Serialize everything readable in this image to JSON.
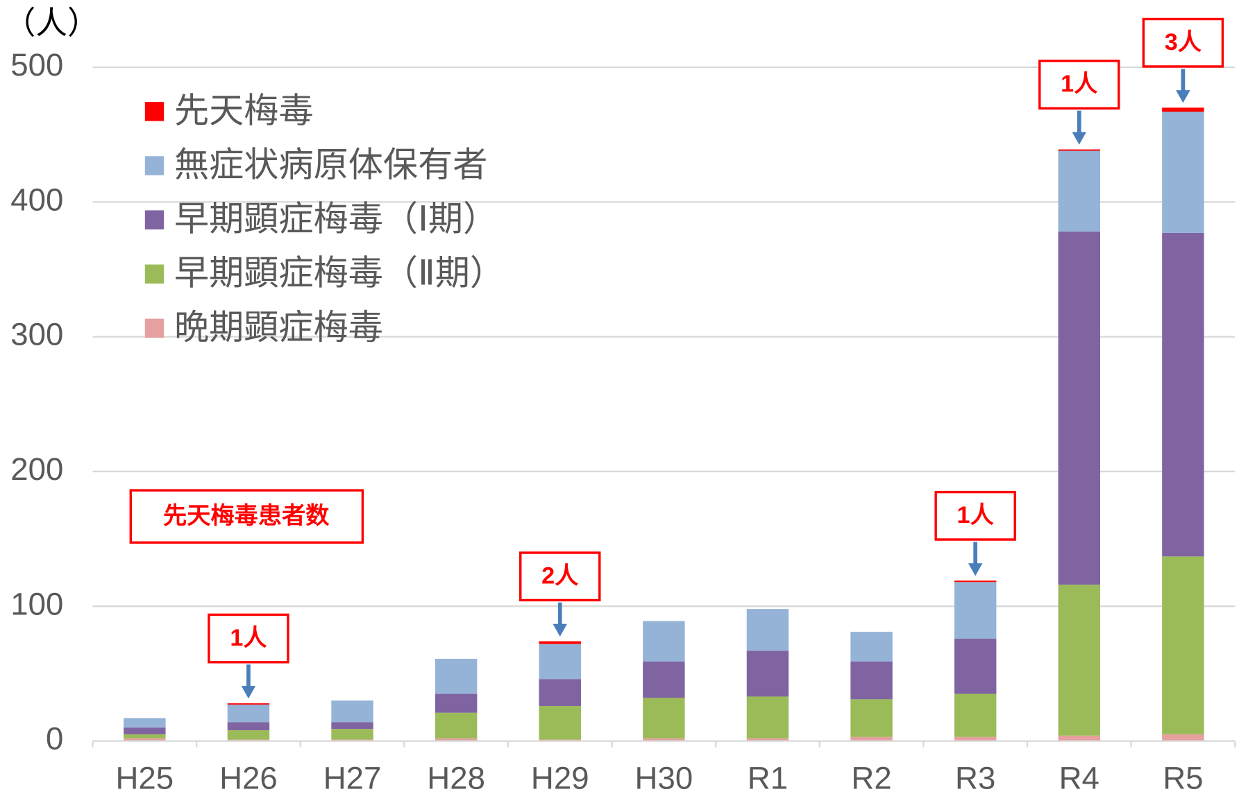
{
  "chart_data": {
    "type": "stacked_bar",
    "y_label": "（人）",
    "annotation": "先天梅毒患者数",
    "categories": [
      "H25",
      "H26",
      "H27",
      "H28",
      "H29",
      "H30",
      "R1",
      "R2",
      "R3",
      "R4",
      "R5"
    ],
    "series": [
      {
        "name": "先天梅毒",
        "color": "#ff0000",
        "values": [
          0,
          1,
          0,
          0,
          2,
          0,
          0,
          0,
          1,
          1,
          3
        ],
        "value_labels": [
          null,
          "1人",
          null,
          null,
          "2人",
          null,
          null,
          null,
          "1人",
          "1人",
          "3人"
        ]
      },
      {
        "name": "無症状病原体保有者",
        "color": "#95b3d7",
        "values": [
          7,
          13,
          16,
          26,
          26,
          30,
          31,
          22,
          42,
          60,
          90
        ]
      },
      {
        "name": "早期顕症梅毒（Ⅰ期）",
        "color": "#8064a2",
        "values": [
          5,
          6,
          5,
          14,
          20,
          27,
          34,
          28,
          41,
          262,
          240
        ]
      },
      {
        "name": "早期顕症梅毒（Ⅱ期）",
        "color": "#9bbb59",
        "values": [
          3,
          7,
          8,
          19,
          25,
          30,
          31,
          28,
          32,
          112,
          132
        ]
      },
      {
        "name": "晩期顕症梅毒",
        "color": "#e6a0a0",
        "values": [
          2,
          1,
          1,
          2,
          1,
          2,
          2,
          3,
          3,
          4,
          5
        ]
      }
    ],
    "ylim": [
      0,
      500
    ],
    "yticks": [
      0,
      100,
      200,
      300,
      400,
      500
    ],
    "grid": true
  }
}
